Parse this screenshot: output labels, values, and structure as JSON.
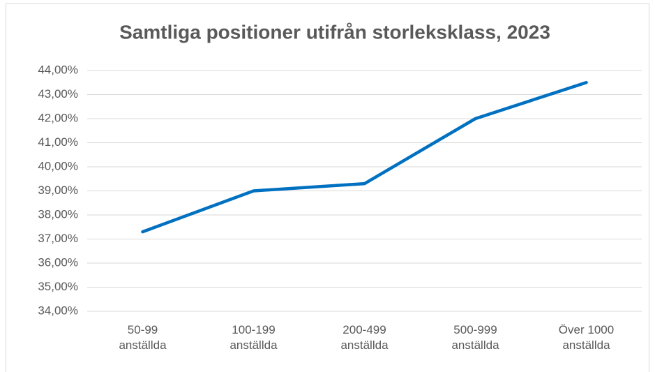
{
  "chart_data": {
    "type": "line",
    "title": "Samtliga positioner utifrån storleksklass, 2023",
    "categories": [
      "50-99 anställda",
      "100-199 anställda",
      "200-499 anställda",
      "500-999 anställda",
      "Över 1000 anställda"
    ],
    "values": [
      37.3,
      39.0,
      39.3,
      42.0,
      43.5
    ],
    "color": "#0070c0",
    "ylim": [
      34,
      44
    ],
    "yticks": [
      {
        "value": 34,
        "label": "34,00%"
      },
      {
        "value": 35,
        "label": "35,00%"
      },
      {
        "value": 36,
        "label": "36,00%"
      },
      {
        "value": 37,
        "label": "37,00%"
      },
      {
        "value": 38,
        "label": "38,00%"
      },
      {
        "value": 39,
        "label": "39,00%"
      },
      {
        "value": 40,
        "label": "40,00%"
      },
      {
        "value": 41,
        "label": "41,00%"
      },
      {
        "value": 42,
        "label": "42,00%"
      },
      {
        "value": 43,
        "label": "43,00%"
      },
      {
        "value": 44,
        "label": "44,00%"
      }
    ],
    "grid": true
  }
}
